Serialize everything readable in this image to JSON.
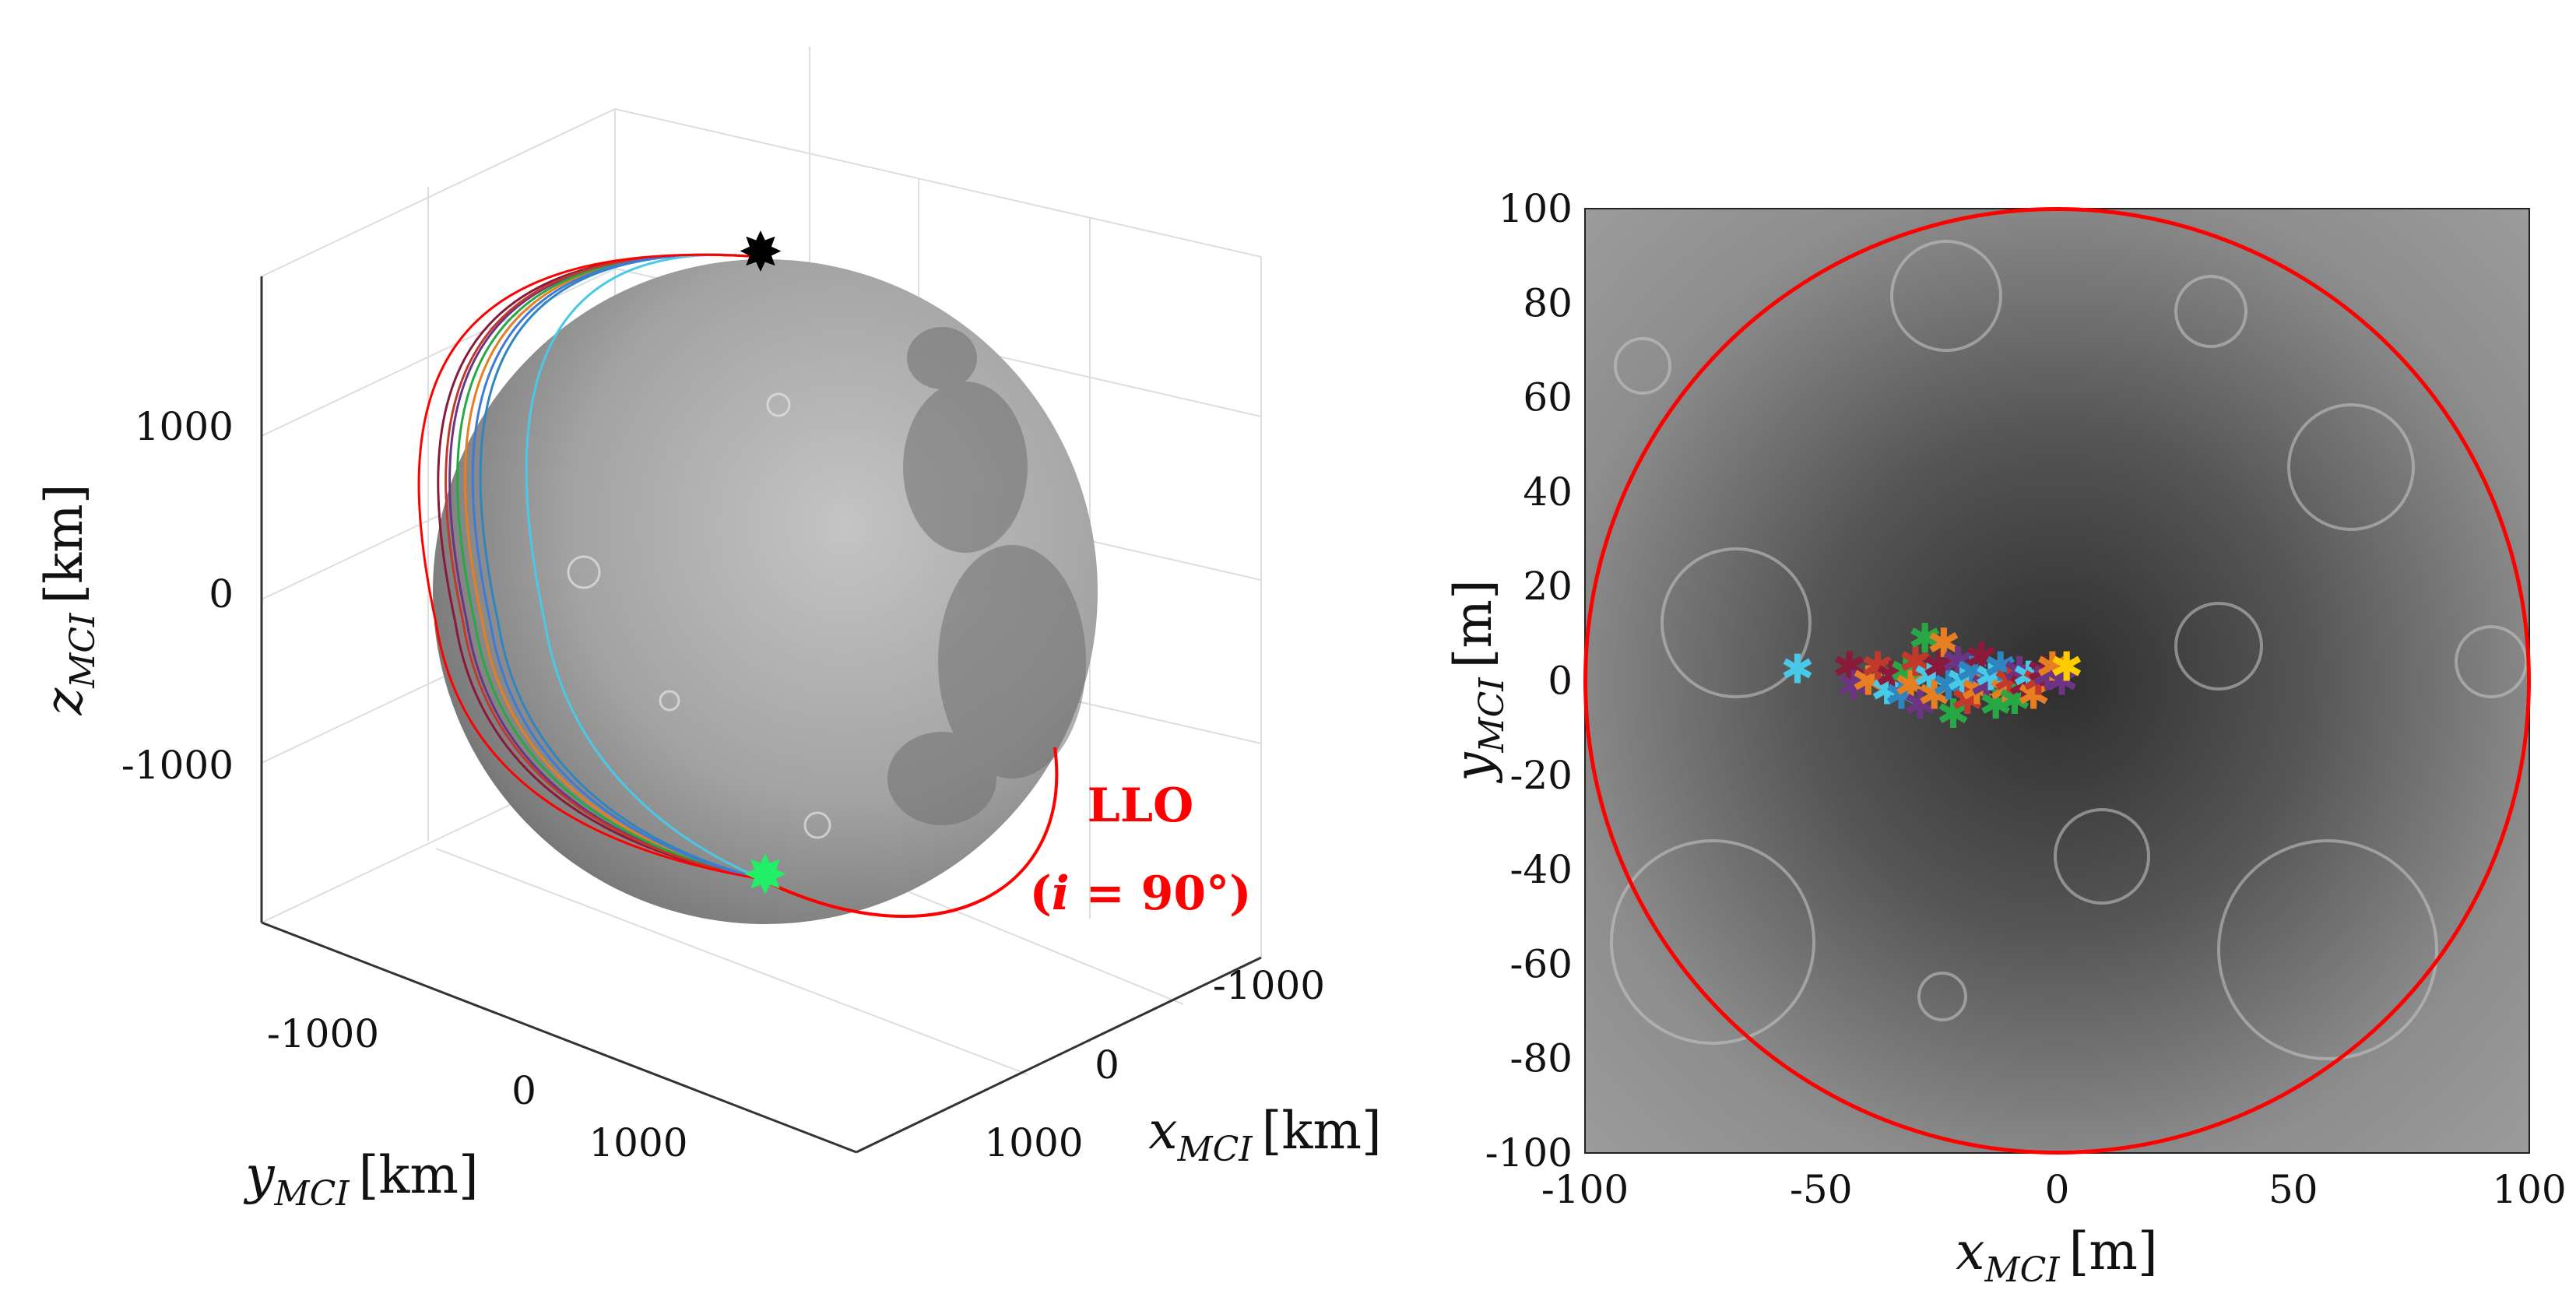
{
  "chart_data": [
    {
      "type": "scatter",
      "panel": "3d-trajectories",
      "xlabel": "x_MCI [km]",
      "xlabel_var": "x",
      "xlabel_sub": "MCI",
      "xlabel_unit": "[km]",
      "ylabel": "y_MCI [km]",
      "ylabel_var": "y",
      "ylabel_sub": "MCI",
      "ylabel_unit": "[km]",
      "zlabel": "z_MCI [km]",
      "zlabel_var": "z",
      "zlabel_sub": "MCI",
      "zlabel_unit": "[km]",
      "xticks": [
        "-1000",
        "0",
        "1000"
      ],
      "yticks": [
        "-1000",
        "0",
        "1000"
      ],
      "zticks": [
        "1000",
        "0",
        "-1000"
      ],
      "xlim": [
        -1900,
        1900
      ],
      "ylim": [
        -1900,
        1900
      ],
      "zlim": [
        -1900,
        1900
      ],
      "grid": true,
      "body_radius_km": 1737,
      "annotation": {
        "line1": "LLO",
        "line2_prefix": "(",
        "line2_var": "i",
        "line2_rest": " = 90°)",
        "color": "#ff0000"
      },
      "markers": [
        {
          "name": "start",
          "shape": "star",
          "color": "#000000"
        },
        {
          "name": "end",
          "shape": "star",
          "color": "#22ee66"
        }
      ],
      "series": [
        {
          "color": "#8b1a3a"
        },
        {
          "color": "#2e86c1"
        },
        {
          "color": "#6c3483"
        },
        {
          "color": "#e67e22"
        },
        {
          "color": "#28a745"
        },
        {
          "color": "#c0392b"
        },
        {
          "color": "#3d7bd6"
        },
        {
          "color": "#48c9e8"
        },
        {
          "color": "#ff0000"
        }
      ]
    },
    {
      "type": "scatter",
      "panel": "landing-map",
      "xlabel": "x_MCI [m]",
      "xlabel_var": "x",
      "xlabel_sub": "MCI",
      "xlabel_unit": "[m]",
      "ylabel": "y_MCI [m]",
      "ylabel_var": "y",
      "ylabel_sub": "MCI",
      "ylabel_unit": "[m]",
      "xlim": [
        -100,
        100
      ],
      "ylim": [
        -100,
        100
      ],
      "xticks": [
        "-100",
        "-50",
        "0",
        "50",
        "100"
      ],
      "yticks": [
        "100",
        "80",
        "60",
        "40",
        "20",
        "0",
        "-20",
        "-40",
        "-60",
        "-80",
        "-100"
      ],
      "circle": {
        "center": [
          0,
          0
        ],
        "radius": 100,
        "color": "#ff0000"
      },
      "marker": "asterisk",
      "points": [
        {
          "x": -55,
          "y": 2.5,
          "color": "#48c9e8"
        },
        {
          "x": -44,
          "y": 3,
          "color": "#8b1a3a"
        },
        {
          "x": -43,
          "y": -1,
          "color": "#6c3483"
        },
        {
          "x": -40,
          "y": 0,
          "color": "#e67e22"
        },
        {
          "x": -38,
          "y": 3,
          "color": "#c0392b"
        },
        {
          "x": -36,
          "y": -2,
          "color": "#48c9e8"
        },
        {
          "x": -35,
          "y": 1,
          "color": "#8b1a3a"
        },
        {
          "x": -33,
          "y": -3,
          "color": "#2e86c1"
        },
        {
          "x": -32,
          "y": 2,
          "color": "#28a745"
        },
        {
          "x": -31,
          "y": -1,
          "color": "#e67e22"
        },
        {
          "x": -30,
          "y": 4,
          "color": "#c0392b"
        },
        {
          "x": -29,
          "y": -5,
          "color": "#6c3483"
        },
        {
          "x": -28,
          "y": 9,
          "color": "#28a745"
        },
        {
          "x": -27,
          "y": 1,
          "color": "#48c9e8"
        },
        {
          "x": -26,
          "y": -3,
          "color": "#e67e22"
        },
        {
          "x": -25,
          "y": 3,
          "color": "#8b1a3a"
        },
        {
          "x": -24,
          "y": 8,
          "color": "#e67e22"
        },
        {
          "x": -23,
          "y": -1,
          "color": "#2e86c1"
        },
        {
          "x": -22,
          "y": -7,
          "color": "#28a745"
        },
        {
          "x": -21,
          "y": 4,
          "color": "#6c3483"
        },
        {
          "x": -20,
          "y": 0,
          "color": "#48c9e8"
        },
        {
          "x": -19,
          "y": -4,
          "color": "#c0392b"
        },
        {
          "x": -18,
          "y": 2,
          "color": "#2e86c1"
        },
        {
          "x": -17,
          "y": -2,
          "color": "#e67e22"
        },
        {
          "x": -16,
          "y": 5,
          "color": "#8b1a3a"
        },
        {
          "x": -15,
          "y": -1,
          "color": "#6c3483"
        },
        {
          "x": -14,
          "y": 1,
          "color": "#48c9e8"
        },
        {
          "x": -13,
          "y": -5,
          "color": "#28a745"
        },
        {
          "x": -12,
          "y": 3,
          "color": "#2e86c1"
        },
        {
          "x": -11,
          "y": -2,
          "color": "#e67e22"
        },
        {
          "x": -10,
          "y": 0,
          "color": "#c0392b"
        },
        {
          "x": -9,
          "y": -4,
          "color": "#28a745"
        },
        {
          "x": -8,
          "y": 2,
          "color": "#6c3483"
        },
        {
          "x": -7,
          "y": -1,
          "color": "#8b1a3a"
        },
        {
          "x": -6,
          "y": 1,
          "color": "#48c9e8"
        },
        {
          "x": -5,
          "y": -3,
          "color": "#e67e22"
        },
        {
          "x": -4,
          "y": 0,
          "color": "#c0392b"
        },
        {
          "x": -3,
          "y": 2,
          "color": "#8b1a3a"
        },
        {
          "x": -2,
          "y": 1,
          "color": "#6c3483"
        },
        {
          "x": -1,
          "y": 3,
          "color": "#e67e22"
        },
        {
          "x": 1,
          "y": 0,
          "color": "#6c3483"
        },
        {
          "x": 2,
          "y": 3,
          "color": "#ffcc00"
        }
      ]
    }
  ]
}
